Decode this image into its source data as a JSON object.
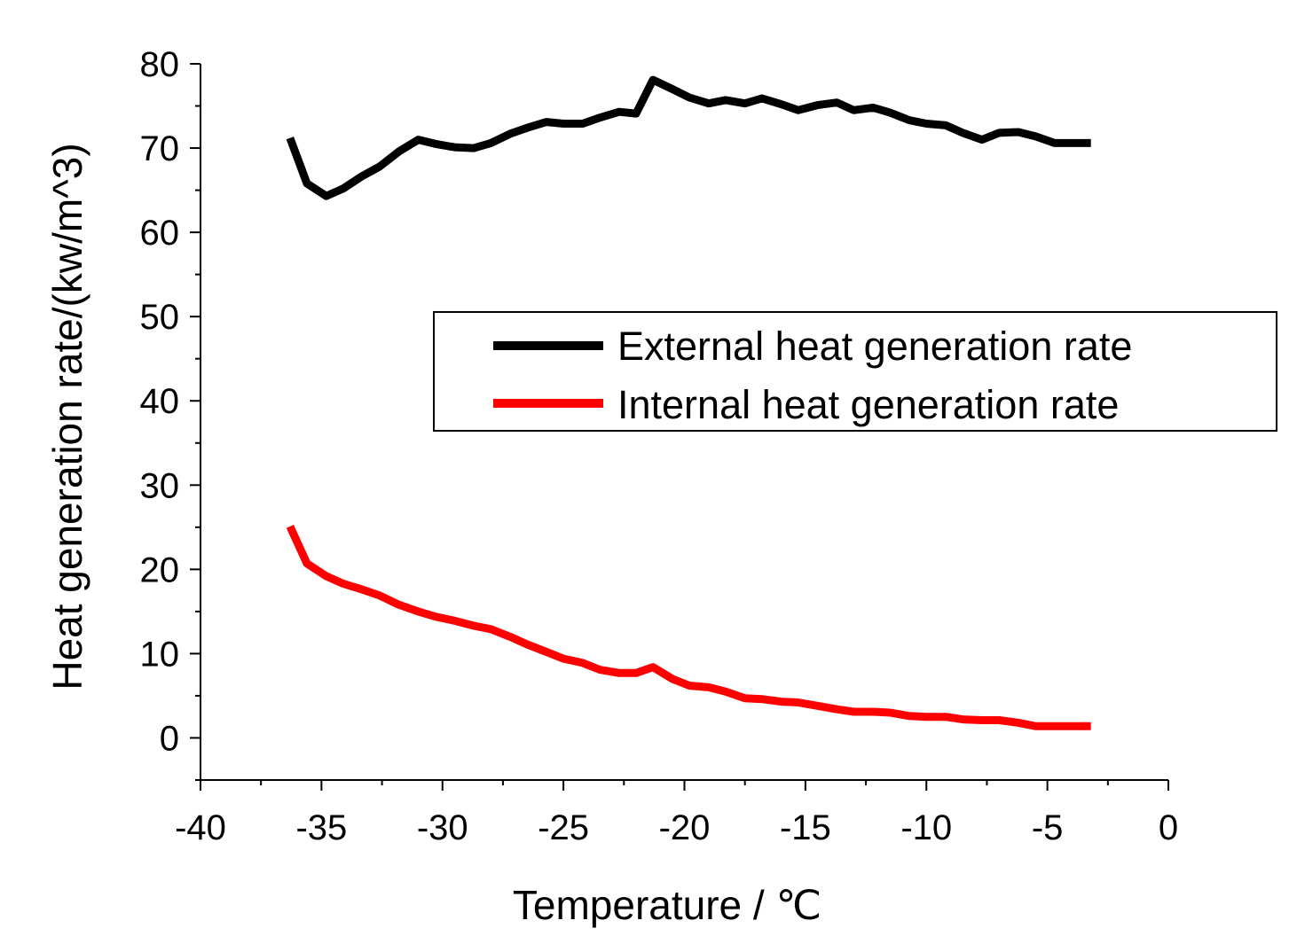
{
  "chart_data": {
    "type": "line",
    "title": "",
    "xlabel": "Temperature / ℃",
    "ylabel": "Heat generation rate/(kw/m^3)",
    "xlim": [
      -40,
      0
    ],
    "ylim": [
      -5,
      80
    ],
    "xticks": [
      -40,
      -35,
      -30,
      -25,
      -20,
      -15,
      -10,
      -5,
      0
    ],
    "xtick_labels": [
      "-40",
      "-35",
      "-30",
      "-25",
      "-20",
      "-15",
      "-10",
      "-5",
      "0"
    ],
    "yticks": [
      0,
      10,
      20,
      30,
      40,
      50,
      60,
      70,
      80
    ],
    "ytick_labels": [
      "0",
      "10",
      "20",
      "30",
      "40",
      "50",
      "60",
      "70",
      "80"
    ],
    "legend_position": "center-right",
    "series": [
      {
        "name": "External heat generation rate",
        "color": "#000000",
        "x": [
          -36.3,
          -35.6,
          -34.8,
          -34.1,
          -33.3,
          -32.6,
          -31.8,
          -31.0,
          -30.3,
          -29.5,
          -28.7,
          -28.0,
          -27.2,
          -26.5,
          -25.7,
          -25.0,
          -24.2,
          -23.5,
          -22.7,
          -22.0,
          -21.3,
          -20.5,
          -19.8,
          -19.0,
          -18.3,
          -17.5,
          -16.8,
          -16.0,
          -15.3,
          -14.5,
          -13.7,
          -13.0,
          -12.2,
          -11.5,
          -10.7,
          -10.0,
          -9.2,
          -8.5,
          -7.7,
          -7.0,
          -6.2,
          -5.5,
          -4.7,
          -4.0,
          -3.2
        ],
        "y": [
          71.2,
          65.8,
          64.3,
          65.2,
          66.7,
          67.8,
          69.6,
          71.0,
          70.5,
          70.1,
          70.0,
          70.6,
          71.7,
          72.4,
          73.1,
          72.9,
          72.9,
          73.6,
          74.3,
          74.1,
          78.1,
          77.0,
          76.0,
          75.3,
          75.7,
          75.3,
          75.9,
          75.2,
          74.5,
          75.1,
          75.4,
          74.5,
          74.8,
          74.2,
          73.3,
          72.9,
          72.7,
          71.8,
          71.0,
          71.8,
          71.9,
          71.4,
          70.6,
          70.6,
          70.6
        ]
      },
      {
        "name": "Internal heat generation rate",
        "color": "#ff0000",
        "x": [
          -36.3,
          -35.6,
          -34.8,
          -34.1,
          -33.3,
          -32.6,
          -31.8,
          -31.0,
          -30.3,
          -29.5,
          -28.7,
          -28.0,
          -27.2,
          -26.5,
          -25.7,
          -25.0,
          -24.2,
          -23.5,
          -22.7,
          -22.0,
          -21.3,
          -20.5,
          -19.8,
          -19.0,
          -18.3,
          -17.5,
          -16.8,
          -16.0,
          -15.3,
          -14.5,
          -13.7,
          -13.0,
          -12.2,
          -11.5,
          -10.7,
          -10.0,
          -9.2,
          -8.5,
          -7.7,
          -7.0,
          -6.2,
          -5.5,
          -4.7,
          -4.0,
          -3.2
        ],
        "y": [
          25.1,
          20.7,
          19.2,
          18.3,
          17.6,
          16.9,
          15.8,
          15.0,
          14.4,
          13.9,
          13.3,
          12.9,
          12.0,
          11.1,
          10.2,
          9.4,
          8.9,
          8.1,
          7.7,
          7.7,
          8.4,
          7.0,
          6.2,
          6.0,
          5.5,
          4.7,
          4.6,
          4.3,
          4.2,
          3.8,
          3.4,
          3.1,
          3.1,
          3.0,
          2.6,
          2.5,
          2.5,
          2.2,
          2.1,
          2.1,
          1.8,
          1.4,
          1.4,
          1.4,
          1.4
        ]
      }
    ]
  }
}
